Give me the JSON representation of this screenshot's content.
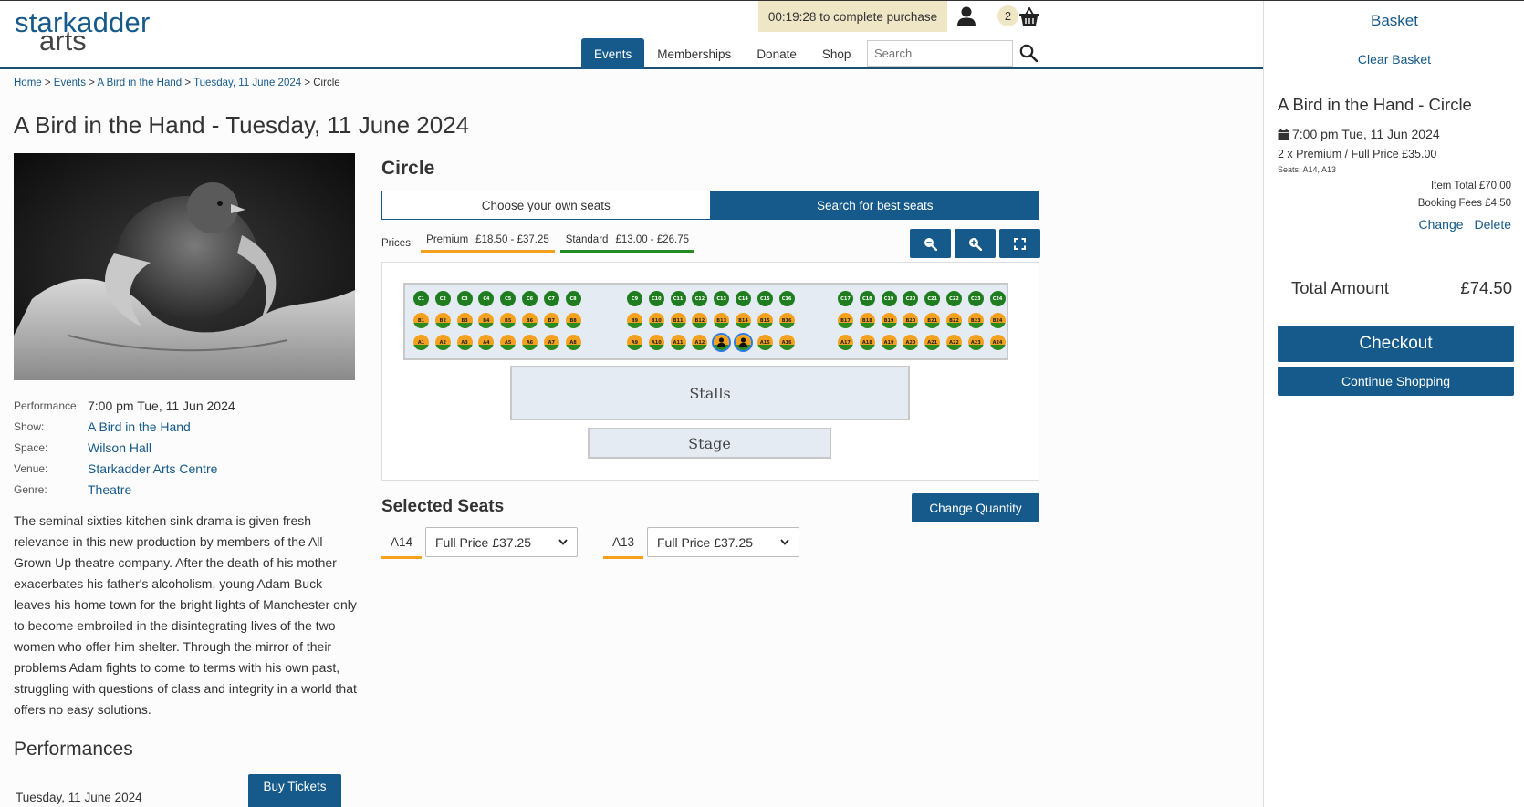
{
  "header": {
    "logo_line1": "starkadder",
    "logo_line2": "arts",
    "timer": "00:19:28 to complete purchase",
    "basket_count": "2",
    "nav": [
      {
        "label": "Events",
        "active": true
      },
      {
        "label": "Memberships",
        "active": false
      },
      {
        "label": "Donate",
        "active": false
      },
      {
        "label": "Shop",
        "active": false
      }
    ],
    "search_placeholder": "Search",
    "icons": {
      "user": "user-icon",
      "basket": "basket-icon",
      "search": "search-icon"
    }
  },
  "breadcrumb": [
    {
      "label": "Home",
      "link": true
    },
    {
      "label": "Events",
      "link": true
    },
    {
      "label": "A Bird in the Hand",
      "link": true
    },
    {
      "label": "Tuesday, 11 June 2024",
      "link": true
    },
    {
      "label": "Circle",
      "link": false
    }
  ],
  "page_title": "A Bird in the Hand - Tuesday, 11 June 2024",
  "event": {
    "meta": [
      {
        "label": "Performance:",
        "value": "7:00 pm Tue, 11 Jun 2024",
        "link": false
      },
      {
        "label": "Show:",
        "value": "A Bird in the Hand",
        "link": true
      },
      {
        "label": "Space:",
        "value": "Wilson Hall",
        "link": true
      },
      {
        "label": "Venue:",
        "value": "Starkadder Arts Centre",
        "link": true
      },
      {
        "label": "Genre:",
        "value": "Theatre",
        "link": true
      }
    ],
    "description": "The seminal sixties kitchen sink drama is given fresh relevance in this new production by members of the All Grown Up theatre company. After the death of his mother exacerbates his father's alcoholism, young Adam Buck leaves his home town for the bright lights of Manchester only to become embroiled in the disintegrating lives of the two women who offer him shelter. Through the mirror of their problems Adam fights to come to terms with his own past, struggling with questions of class and integrity in a world that offers no easy solutions.",
    "performances_title": "Performances",
    "performances": [
      {
        "date": "Tuesday, 11 June 2024",
        "button": "Buy Tickets"
      }
    ]
  },
  "seating": {
    "section_title": "Circle",
    "tabs": {
      "own": "Choose your own seats",
      "best": "Search for best seats"
    },
    "prices_label": "Prices:",
    "price_bands": [
      {
        "name": "Premium",
        "range": "£18.50 - £37.25",
        "color": "#f5a11d"
      },
      {
        "name": "Standard",
        "range": "£13.00 - £26.75",
        "color": "#228b22"
      }
    ],
    "zoom_buttons": [
      "zoom-out-icon",
      "zoom-in-icon",
      "fullscreen-icon"
    ],
    "rows": [
      {
        "row": "C",
        "type": "green"
      },
      {
        "row": "B",
        "type": "orange"
      },
      {
        "row": "A",
        "type": "orange"
      }
    ],
    "seats_per_row": 24,
    "selected": [
      "A13",
      "A14"
    ],
    "stalls_label": "Stalls",
    "stage_label": "Stage",
    "colors": {
      "green": "#1f7d1f",
      "orange": "#f5a11d",
      "selected_ring": "#2d7be2"
    }
  },
  "selected_seats": {
    "title": "Selected Seats",
    "change_quantity": "Change Quantity",
    "items": [
      {
        "seat": "A14",
        "price": "Full Price £37.25"
      },
      {
        "seat": "A13",
        "price": "Full Price £37.25"
      }
    ]
  },
  "basket": {
    "title": "Basket",
    "clear": "Clear Basket",
    "event": "A Bird in the Hand - Circle",
    "time": "7:00 pm Tue, 11 Jun 2024",
    "line": "2 x Premium / Full Price £35.00",
    "seats": "Seats: A14, A13",
    "item_total": "Item Total £70.00",
    "booking_fees": "Booking Fees £4.50",
    "change": "Change",
    "delete": "Delete",
    "total_label": "Total Amount",
    "total_value": "£74.50",
    "checkout": "Checkout",
    "continue": "Continue Shopping"
  }
}
